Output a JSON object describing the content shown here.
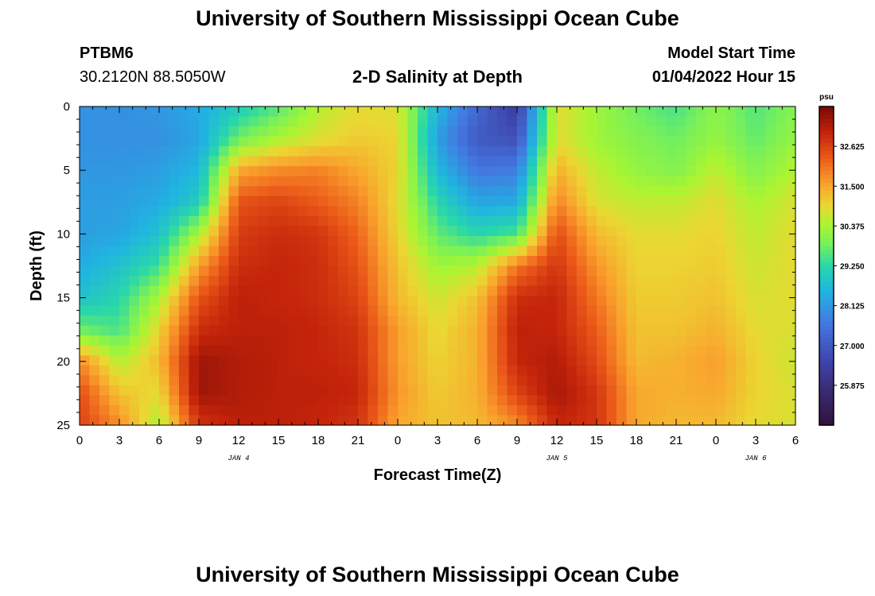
{
  "header": {
    "title": "University of Southern Mississippi Ocean Cube",
    "station": "PTBM6",
    "coords": "30.2120N  88.5050W",
    "subtitle": "2-D Salinity at Depth",
    "model_label": "Model Start Time",
    "model_value": "01/04/2022 Hour 15"
  },
  "footer": {
    "title": "University of Southern Mississippi Ocean Cube"
  },
  "chart_data": {
    "type": "heatmap",
    "xlabel": "Forecast Time(Z)",
    "ylabel": "Depth (ft)",
    "x_range": [
      0,
      54
    ],
    "y_range": [
      0,
      25
    ],
    "y_inverted": true,
    "x_tick_values": [
      0,
      3,
      6,
      9,
      12,
      15,
      18,
      21,
      24,
      27,
      30,
      33,
      36,
      39,
      42,
      45,
      48,
      51,
      54
    ],
    "x_tick_labels": [
      "0",
      "3",
      "6",
      "9",
      "12",
      "15",
      "18",
      "21",
      "0",
      "3",
      "6",
      "9",
      "12",
      "15",
      "18",
      "21",
      "0",
      "3",
      "6"
    ],
    "y_ticks": [
      "0",
      "5",
      "10",
      "15",
      "20",
      "25"
    ],
    "day_labels": [
      {
        "x": 12,
        "text": "JAN 4"
      },
      {
        "x": 36,
        "text": "JAN 5"
      },
      {
        "x": 51,
        "text": "JAN 6"
      }
    ],
    "colorbar": {
      "unit": "psu",
      "range": [
        24.75,
        33.75
      ],
      "ticks": [
        "25.875",
        "27.000",
        "28.125",
        "29.250",
        "30.375",
        "31.500",
        "32.625"
      ]
    },
    "depths": [
      0,
      2.5,
      5,
      7.5,
      10,
      12.5,
      15,
      17.5,
      20,
      22.5,
      25
    ],
    "times": [
      0,
      3,
      6,
      9,
      12,
      15,
      18,
      21,
      24,
      27,
      30,
      33,
      36,
      39,
      42,
      45,
      48,
      51,
      54
    ],
    "salinity": [
      [
        28.0,
        28.0,
        28.1,
        28.4,
        29.0,
        29.6,
        30.5,
        30.9,
        30.8,
        28.6,
        27.3,
        26.3,
        30.9,
        30.3,
        29.8,
        29.5,
        30.1,
        29.6,
        30.0
      ],
      [
        28.0,
        28.0,
        28.0,
        28.3,
        29.8,
        30.4,
        30.8,
        31.1,
        31.0,
        28.2,
        27.0,
        26.8,
        30.9,
        30.3,
        30.0,
        29.8,
        30.2,
        29.7,
        30.2
      ],
      [
        28.1,
        28.1,
        28.2,
        28.6,
        31.5,
        31.8,
        31.9,
        31.5,
        31.0,
        28.6,
        27.6,
        27.7,
        31.4,
        30.6,
        30.2,
        30.0,
        30.6,
        30.0,
        30.5
      ],
      [
        28.2,
        28.2,
        28.4,
        29.0,
        32.4,
        32.6,
        32.3,
        31.9,
        30.9,
        29.2,
        28.3,
        28.4,
        31.9,
        30.8,
        30.6,
        30.6,
        30.9,
        30.4,
        30.8
      ],
      [
        28.2,
        28.3,
        28.8,
        30.4,
        32.7,
        32.9,
        32.8,
        32.2,
        31.0,
        29.7,
        29.2,
        29.5,
        32.5,
        31.3,
        30.9,
        30.9,
        31.0,
        30.6,
        30.9
      ],
      [
        28.4,
        28.8,
        29.4,
        31.6,
        32.9,
        33.0,
        32.9,
        32.4,
        31.2,
        30.3,
        30.5,
        32.0,
        32.8,
        31.7,
        31.0,
        31.0,
        31.1,
        30.7,
        30.9
      ],
      [
        28.8,
        29.2,
        30.4,
        32.4,
        33.1,
        33.0,
        32.9,
        32.6,
        31.3,
        30.7,
        31.2,
        32.9,
        33.0,
        32.0,
        31.1,
        31.1,
        31.2,
        30.8,
        30.9
      ],
      [
        29.8,
        29.5,
        31.0,
        32.9,
        33.1,
        33.1,
        33.0,
        32.8,
        31.6,
        30.9,
        31.4,
        33.1,
        33.0,
        32.3,
        31.2,
        31.2,
        31.4,
        30.9,
        30.8
      ],
      [
        31.8,
        30.5,
        31.3,
        33.4,
        33.2,
        33.1,
        33.0,
        32.9,
        31.6,
        31.0,
        31.4,
        33.0,
        33.2,
        32.5,
        31.3,
        31.4,
        31.6,
        31.0,
        30.7
      ],
      [
        32.5,
        31.2,
        30.9,
        33.4,
        33.2,
        33.1,
        33.1,
        33.0,
        31.7,
        31.1,
        31.4,
        32.6,
        33.3,
        32.8,
        31.5,
        31.4,
        31.5,
        31.0,
        30.8
      ],
      [
        32.6,
        31.8,
        30.4,
        32.8,
        33.1,
        33.1,
        33.0,
        32.8,
        31.5,
        31.2,
        31.3,
        31.8,
        33.0,
        32.8,
        31.5,
        31.3,
        31.3,
        30.9,
        30.8
      ]
    ]
  }
}
